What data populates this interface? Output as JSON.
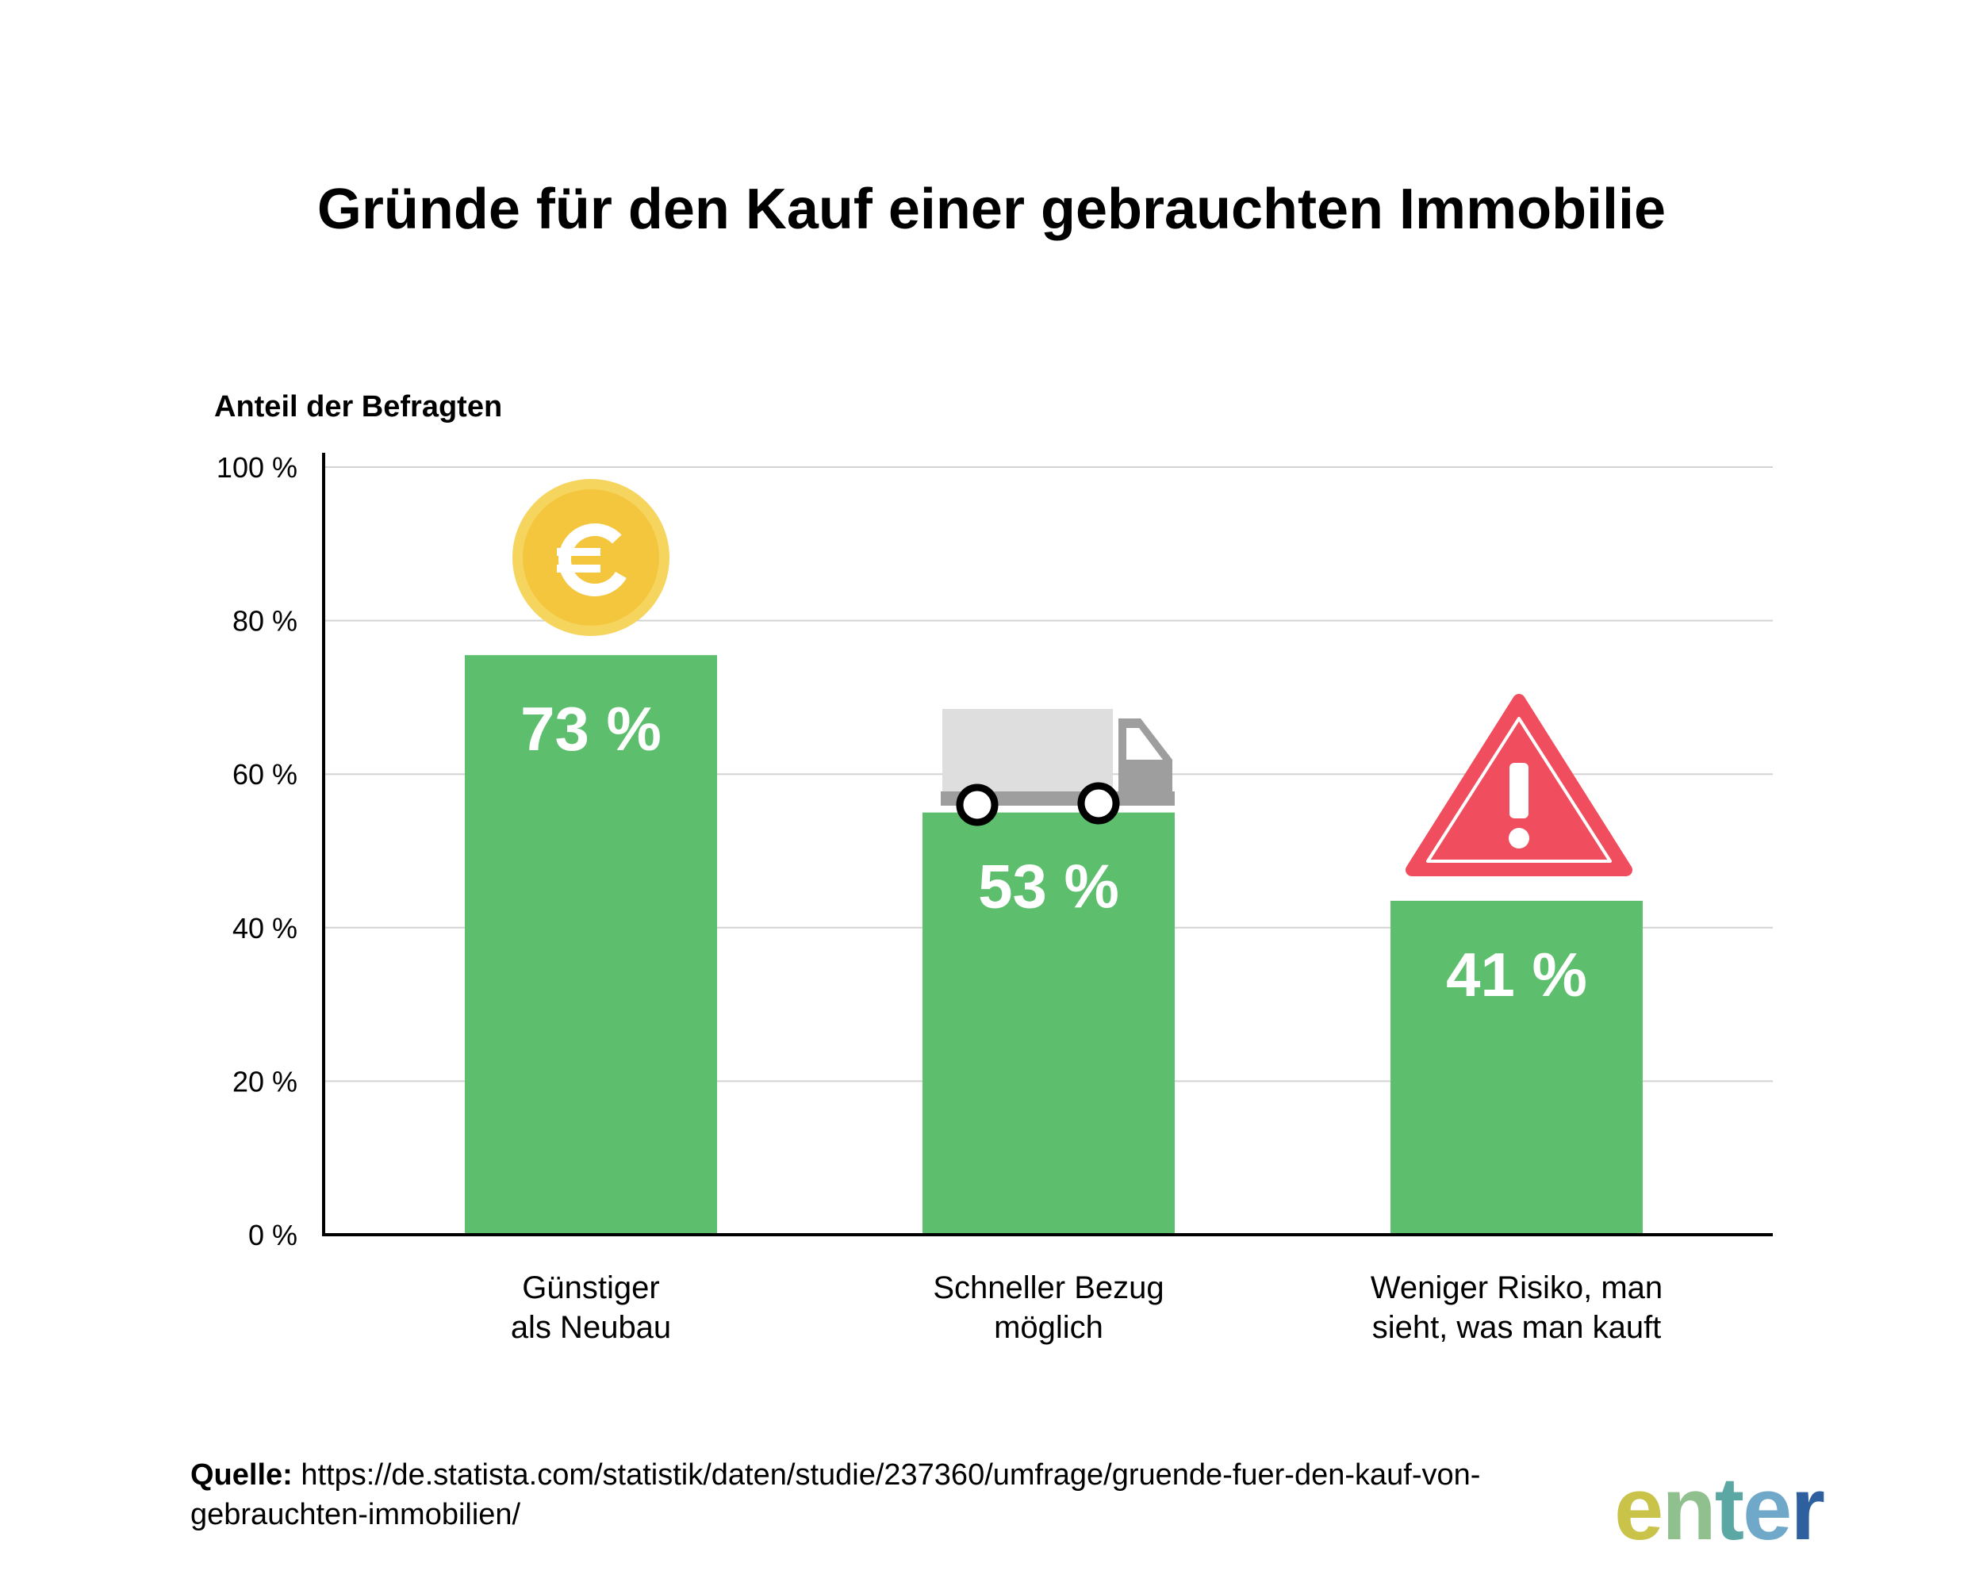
{
  "chart_data": {
    "type": "bar",
    "title": "Gründe für den Kauf einer gebrauchten Immobilie",
    "ylabel": "Anteil der Befragten",
    "xlabel": "",
    "ylim": [
      0,
      100
    ],
    "yticks": [
      0,
      20,
      40,
      60,
      80,
      100
    ],
    "ytick_labels": [
      "0 %",
      "20 %",
      "40 %",
      "60 %",
      "80 %",
      "100 %"
    ],
    "grid": true,
    "categories": [
      [
        "Günstiger",
        "als Neubau"
      ],
      [
        "Schneller Bezug",
        "möglich"
      ],
      [
        "Weniger Risiko, man",
        "sieht, was man kauft"
      ]
    ],
    "values": [
      73,
      53,
      41
    ],
    "value_labels": [
      "73 %",
      "53 %",
      "41 %"
    ],
    "icons": [
      "euro-coin-icon",
      "truck-icon",
      "warning-icon"
    ],
    "colors": {
      "bar": "#5dbf6d",
      "grid": "#d3d3d3",
      "axis": "#000000",
      "coin": "#f4c63d",
      "coin_outer": "#f6d55f",
      "truck_body": "#dedede",
      "truck_cab": "#9e9e9e",
      "warning": "#f04e5e"
    }
  },
  "source": {
    "label": "Quelle:",
    "text": "https://de.statista.com/statistik/daten/studie/237360/umfrage/gruende-fuer-den-kauf-von-gebrauchten-immobilien/"
  },
  "logo": {
    "text": "enter",
    "colors": [
      "#c9c34a",
      "#8fc08e",
      "#5aa7a3",
      "#6fa8c8",
      "#2e5f9e"
    ]
  }
}
